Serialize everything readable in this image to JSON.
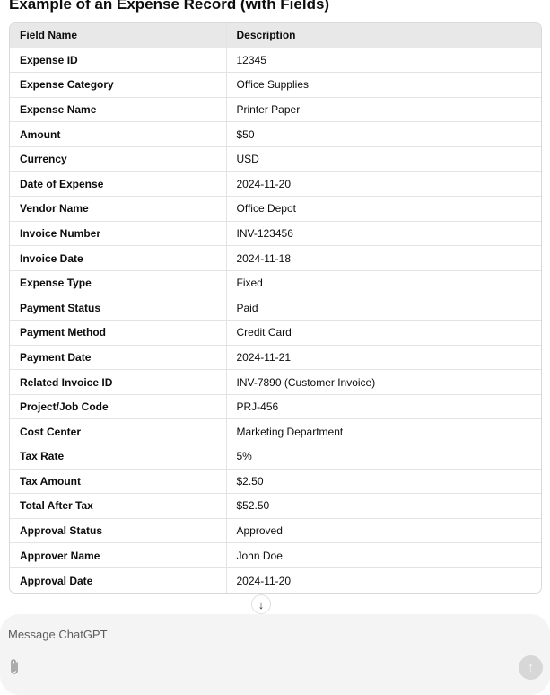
{
  "title": "Example of an Expense Record (with Fields)",
  "table": {
    "headers": [
      "Field Name",
      "Description"
    ],
    "rows": [
      [
        "Expense ID",
        "12345"
      ],
      [
        "Expense Category",
        "Office Supplies"
      ],
      [
        "Expense Name",
        "Printer Paper"
      ],
      [
        "Amount",
        "$50"
      ],
      [
        "Currency",
        "USD"
      ],
      [
        "Date of Expense",
        "2024-11-20"
      ],
      [
        "Vendor Name",
        "Office Depot"
      ],
      [
        "Invoice Number",
        "INV-123456"
      ],
      [
        "Invoice Date",
        "2024-11-18"
      ],
      [
        "Expense Type",
        "Fixed"
      ],
      [
        "Payment Status",
        "Paid"
      ],
      [
        "Payment Method",
        "Credit Card"
      ],
      [
        "Payment Date",
        "2024-11-21"
      ],
      [
        "Related Invoice ID",
        "INV-7890 (Customer Invoice)"
      ],
      [
        "Project/Job Code",
        "PRJ-456"
      ],
      [
        "Cost Center",
        "Marketing Department"
      ],
      [
        "Tax Rate",
        "5%"
      ],
      [
        "Tax Amount",
        "$2.50"
      ],
      [
        "Total After Tax",
        "$52.50"
      ],
      [
        "Approval Status",
        "Approved"
      ],
      [
        "Approver Name",
        "John Doe"
      ],
      [
        "Approval Date",
        "2024-11-20"
      ]
    ]
  },
  "composer": {
    "placeholder": "Message ChatGPT",
    "attach_icon": "paperclip-icon",
    "send_icon": "arrow-up-icon"
  },
  "scroll_icon": "arrow-down-icon"
}
